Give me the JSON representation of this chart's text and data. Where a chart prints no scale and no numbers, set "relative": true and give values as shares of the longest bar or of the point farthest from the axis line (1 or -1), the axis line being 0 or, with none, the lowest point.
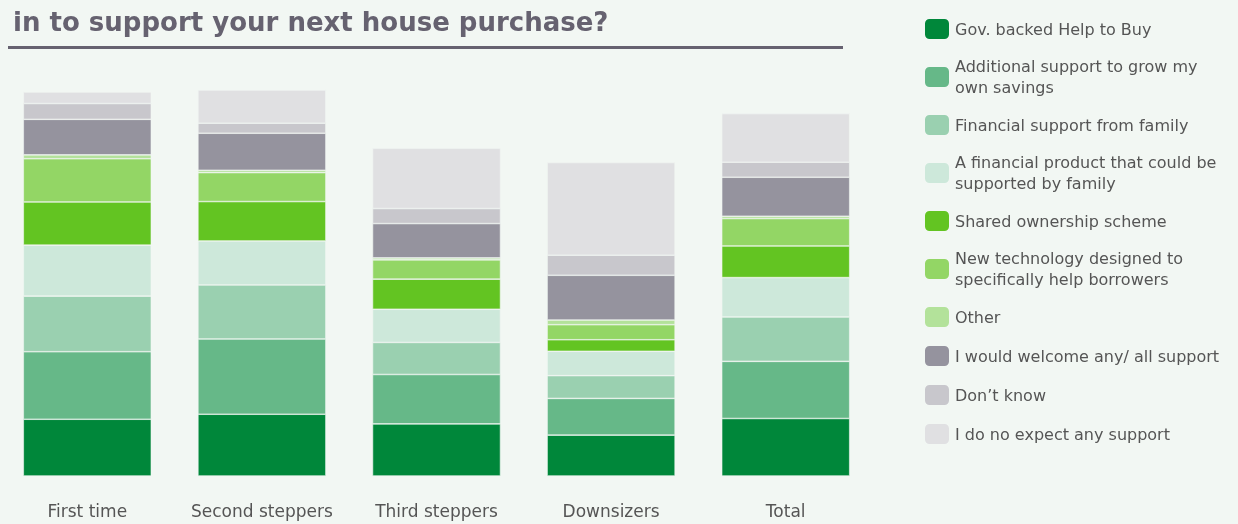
{
  "chart_data": {
    "type": "bar",
    "title": "in to support your next house purchase?",
    "relative": true,
    "stacked": true,
    "legend": "right",
    "categories": [
      "First time",
      "Second steppers",
      "Third steppers",
      "Downsizers",
      "Total"
    ],
    "series": [
      {
        "name": "Gov. backed Help to Buy",
        "color": "#00873a",
        "values": [
          0.147,
          0.16,
          0.135,
          0.106,
          0.149
        ]
      },
      {
        "name": "Additional support to grow my own savings",
        "color": "#66b888",
        "values": [
          0.175,
          0.195,
          0.128,
          0.095,
          0.148
        ]
      },
      {
        "name": "Financial support from family",
        "color": "#9ad0b0",
        "values": [
          0.144,
          0.14,
          0.083,
          0.059,
          0.115
        ]
      },
      {
        "name": "A financial product that could be supported by family",
        "color": "#cde8da",
        "values": [
          0.132,
          0.114,
          0.086,
          0.063,
          0.102
        ]
      },
      {
        "name": "Shared ownership scheme",
        "color": "#63c422",
        "values": [
          0.112,
          0.102,
          0.078,
          0.03,
          0.082
        ]
      },
      {
        "name": "New technology designed to specifically help borrowers",
        "color": "#93d665",
        "values": [
          0.112,
          0.075,
          0.05,
          0.039,
          0.071
        ]
      },
      {
        "name": "Other",
        "color": "#b3e29a",
        "values": [
          0.01,
          0.006,
          0.005,
          0.012,
          0.006
        ]
      },
      {
        "name": "I would welcome any/ all support",
        "color": "#95939e",
        "values": [
          0.092,
          0.096,
          0.089,
          0.116,
          0.101
        ]
      },
      {
        "name": "Don’t know",
        "color": "#c8c7cc",
        "values": [
          0.041,
          0.026,
          0.039,
          0.052,
          0.039
        ]
      },
      {
        "name": "I do no expect any support",
        "color": "#e0e0e2",
        "values": [
          0.03,
          0.086,
          0.156,
          0.24,
          0.126
        ]
      }
    ]
  }
}
